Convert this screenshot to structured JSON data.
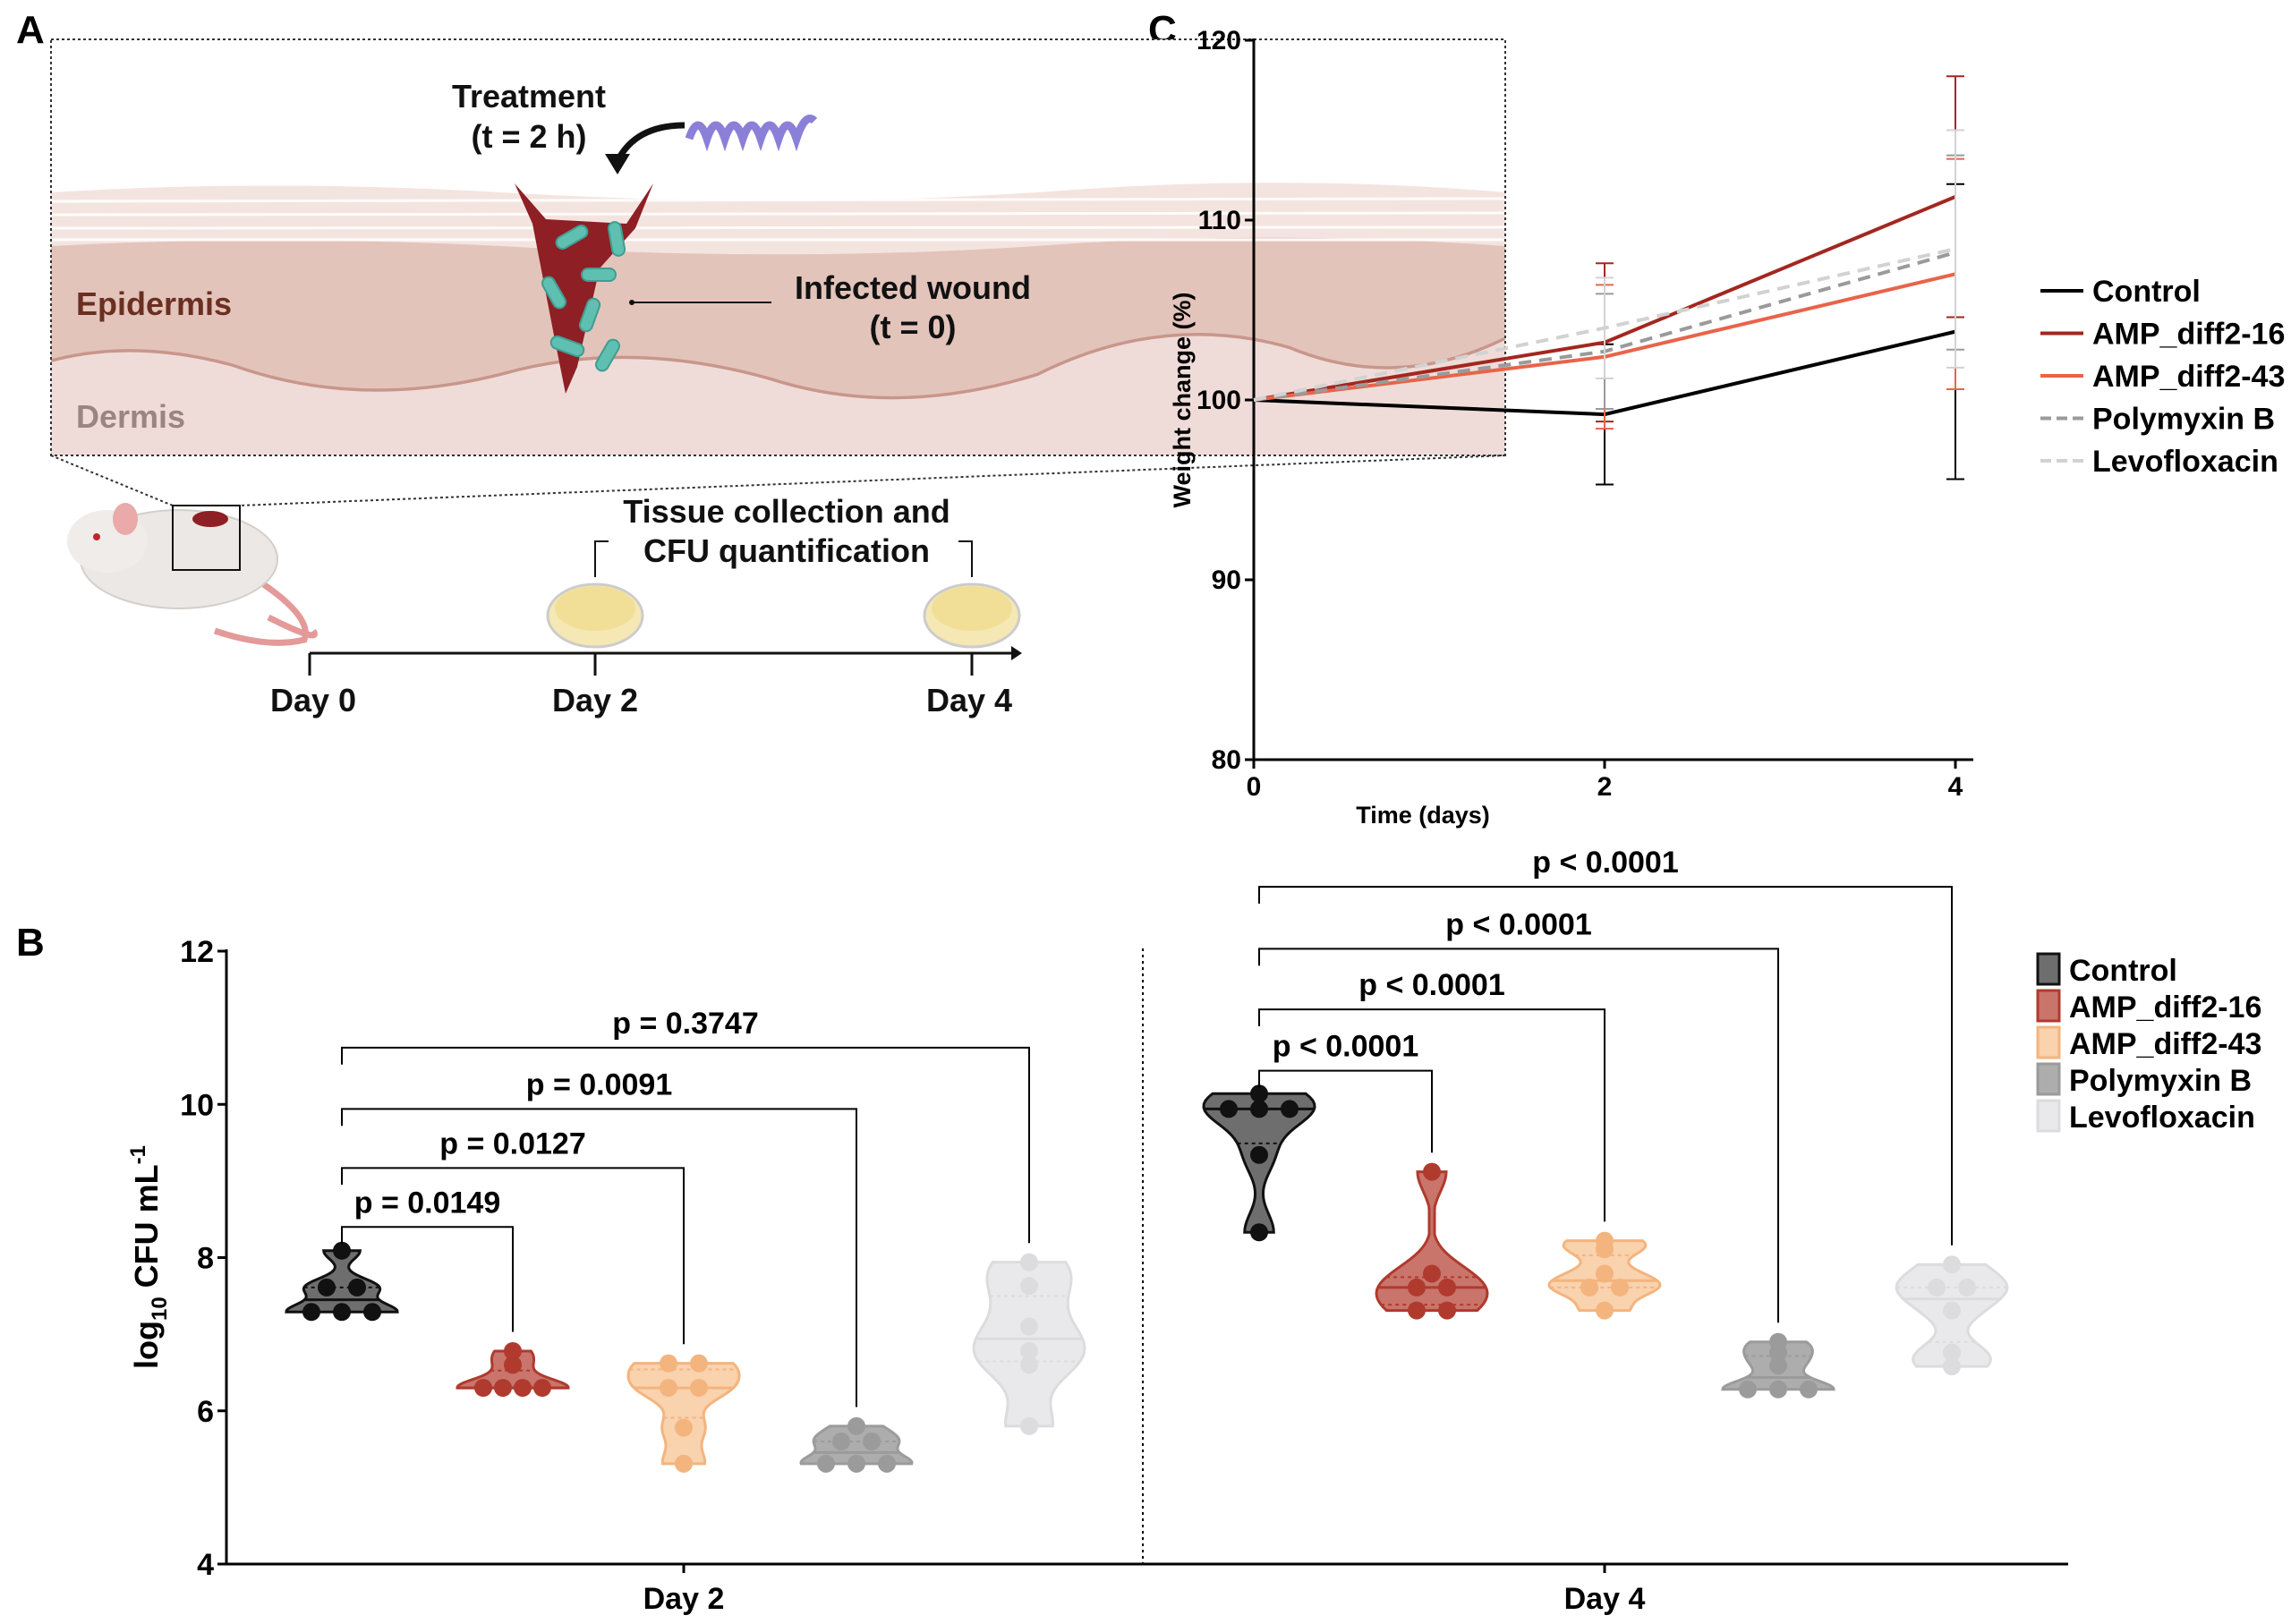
{
  "panel_labels": {
    "a": "A",
    "b": "B",
    "c": "C"
  },
  "panel_a": {
    "treatment_line1": "Treatment",
    "treatment_line2": "(t = 2 h)",
    "wound_line1": "Infected wound",
    "wound_line2": "(t = 0)",
    "epidermis": "Epidermis",
    "dermis": "Dermis",
    "collection_line1": "Tissue collection and",
    "collection_line2": "CFU quantification",
    "timeline": [
      "Day 0",
      "Day 2",
      "Day 4"
    ],
    "colors": {
      "epidermis": "#e6c9c0",
      "dermis": "#f0dcd8",
      "wound": "#8e1f24",
      "bacteria": "#5fbfb1",
      "peptide": "#8b80d8"
    }
  },
  "chart_data": [
    {
      "id": "C",
      "type": "line",
      "xlabel": "Time (days)",
      "ylabel": "Weight change (%)",
      "x": [
        0,
        2,
        4
      ],
      "xticks": [
        "0",
        "2",
        "4"
      ],
      "ylim": [
        80,
        120
      ],
      "yticks": [
        80,
        90,
        100,
        110,
        120
      ],
      "grid": false,
      "legend_position": "right",
      "series": [
        {
          "name": "Control",
          "color": "#000000",
          "dashed": false,
          "values": [
            100,
            99.2,
            103.8
          ],
          "errors": [
            0,
            3.9,
            8.2
          ]
        },
        {
          "name": "AMP_diff2-16",
          "color": "#a3271f",
          "dashed": false,
          "values": [
            100,
            103.2,
            111.3
          ],
          "errors": [
            0,
            4.4,
            6.7
          ]
        },
        {
          "name": "AMP_diff2-43",
          "color": "#e8644a",
          "dashed": false,
          "values": [
            100,
            102.4,
            107.0
          ],
          "errors": [
            0,
            4.0,
            6.4
          ]
        },
        {
          "name": "Polymyxin B",
          "color": "#9a9a9a",
          "dashed": true,
          "values": [
            100,
            102.7,
            108.2
          ],
          "errors": [
            0,
            3.2,
            5.4
          ]
        },
        {
          "name": "Levofloxacin",
          "color": "#d2d2d2",
          "dashed": true,
          "values": [
            100,
            104.0,
            108.4
          ],
          "errors": [
            0,
            2.8,
            6.6
          ]
        }
      ]
    },
    {
      "id": "B",
      "type": "violin",
      "ylabel": {
        "pre": "log",
        "sub": "10",
        "mid": " CFU mL",
        "sup": "-1"
      },
      "ylim": [
        4,
        12
      ],
      "yticks": [
        4,
        6,
        8,
        10,
        12
      ],
      "categories": [
        "Day 2",
        "Day 4"
      ],
      "grid": false,
      "legend_position": "right",
      "groups": [
        {
          "name": "Control",
          "fill": "#6e6e6e",
          "stroke": "#111111"
        },
        {
          "name": "AMP_diff2-16",
          "fill": "#c9756b",
          "stroke": "#b03a2e"
        },
        {
          "name": "AMP_diff2-43",
          "fill": "#f9d2ae",
          "stroke": "#f4b47e"
        },
        {
          "name": "Polymyxin B",
          "fill": "#adadad",
          "stroke": "#9b9b9b"
        },
        {
          "name": "Levofloxacin",
          "fill": "#e9e9eb",
          "stroke": "#dcdcdf"
        }
      ],
      "points": {
        "Day 2": [
          [
            8.09,
            7.61,
            7.61,
            7.29,
            7.29,
            7.29
          ],
          [
            6.78,
            6.6,
            6.3,
            6.3,
            6.3,
            6.3
          ],
          [
            6.62,
            6.62,
            6.3,
            6.3,
            5.78,
            5.31
          ],
          [
            5.8,
            5.6,
            5.6,
            5.31,
            5.31,
            5.31
          ],
          [
            7.94,
            7.63,
            7.1,
            6.78,
            6.6,
            5.8
          ]
        ],
        "Day 4": [
          [
            10.14,
            9.94,
            9.94,
            9.94,
            9.34,
            8.33
          ],
          [
            9.12,
            7.79,
            7.61,
            7.61,
            7.31,
            7.31
          ],
          [
            8.22,
            8.11,
            7.79,
            7.61,
            7.61,
            7.31
          ],
          [
            6.9,
            6.76,
            6.59,
            6.28,
            6.28,
            6.28
          ],
          [
            7.91,
            7.61,
            7.61,
            7.31,
            6.76,
            6.58
          ]
        ]
      },
      "comparisons": [
        {
          "day": "Day 2",
          "to": 1,
          "y": 8.4,
          "label": "p = 0.0149"
        },
        {
          "day": "Day 2",
          "to": 2,
          "y": 9.17,
          "label": "p = 0.0127"
        },
        {
          "day": "Day 2",
          "to": 3,
          "y": 9.94,
          "label": "p = 0.0091"
        },
        {
          "day": "Day 2",
          "to": 4,
          "y": 10.74,
          "label": "p = 0.3747"
        },
        {
          "day": "Day 4",
          "to": 1,
          "y": 10.44,
          "label": "p < 0.0001"
        },
        {
          "day": "Day 4",
          "to": 2,
          "y": 11.24,
          "label": "p < 0.0001"
        },
        {
          "day": "Day 4",
          "to": 3,
          "y": 12.03,
          "label": "p < 0.0001"
        },
        {
          "day": "Day 4",
          "to": 4,
          "y": 12.84,
          "label": "p < 0.0001"
        }
      ]
    }
  ]
}
